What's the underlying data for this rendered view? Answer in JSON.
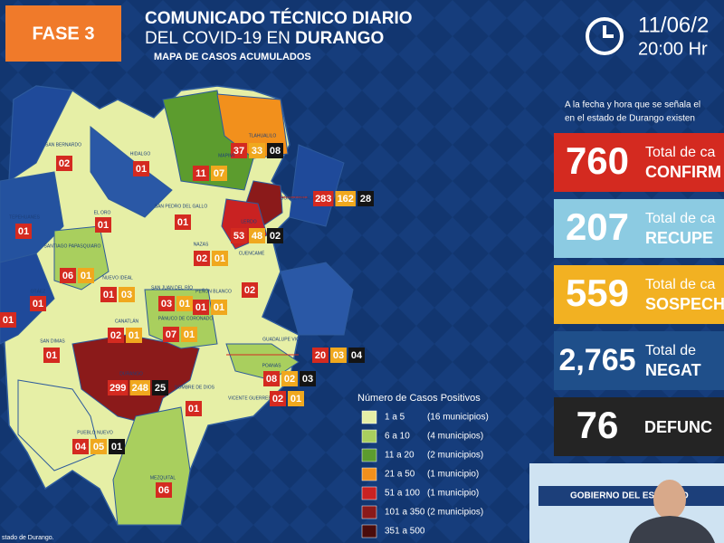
{
  "header": {
    "phase": "FASE 3",
    "title": "COMUNICADO TÉCNICO DIARIO",
    "subtitle_prefix": "DEL COVID-19 EN",
    "subtitle_state": "DURANGO",
    "map_title": "MAPA DE CASOS ACUMULADOS",
    "date": "11/06/2",
    "time": "20:00 Hr"
  },
  "intro": [
    "A la fecha y hora que se señala el",
    "en el estado de Durango existen"
  ],
  "stats": [
    {
      "number": "760",
      "line1": "Total de ca",
      "line2": "CONFIRM"
    },
    {
      "number": "207",
      "line1": "Total de ca",
      "line2": "RECUPE"
    },
    {
      "number": "559",
      "line1": "Total de ca",
      "line2": "SOSPECH"
    },
    {
      "number": "2,765",
      "line1": "Total de",
      "line2": "NEGAT"
    },
    {
      "number": "76",
      "line1": "DEFUNC"
    }
  ],
  "legend": {
    "title": "Número de Casos Positivos",
    "items": [
      {
        "range": "1 a 5",
        "count": "(16 municipios)",
        "color": "#e6efa6"
      },
      {
        "range": "6 a 10",
        "count": "(4 municipios)",
        "color": "#a9cf5e"
      },
      {
        "range": "11 a 20",
        "count": "(2 municipios)",
        "color": "#5c9c2e"
      },
      {
        "range": "21 a 50",
        "count": "(1 municipio)",
        "color": "#f2901c"
      },
      {
        "range": "51 a 100",
        "count": "(1 municipio)",
        "color": "#c92222"
      },
      {
        "range": "101 a 350",
        "count": "(2 municipios)",
        "color": "#8b1a1a"
      },
      {
        "range": "351 a 500",
        "color": "#4a0c0c"
      }
    ]
  },
  "municipalities": [
    {
      "name": "SAN BERNARDO",
      "counts": [
        "02"
      ]
    },
    {
      "name": "HIDALGO",
      "counts": [
        "01"
      ]
    },
    {
      "name": "TLAHUALILO",
      "counts": [
        "37",
        "33",
        "08"
      ]
    },
    {
      "name": "MAPIMÍ",
      "counts": [
        "11",
        "07"
      ]
    },
    {
      "name": "GÓMEZ PALACIO",
      "counts": [
        "283",
        "162",
        "28"
      ]
    },
    {
      "name": "LERDO",
      "counts": [
        "53",
        "48",
        "02"
      ]
    },
    {
      "name": "SAN PEDRO DEL GALLO",
      "counts": [
        "01"
      ]
    },
    {
      "name": "TEPEHUANES",
      "counts": [
        "01"
      ]
    },
    {
      "name": "EL ORO",
      "counts": [
        "01"
      ]
    },
    {
      "name": "SANTIAGO PAPASQUIARO",
      "counts": [
        "06",
        "01"
      ]
    },
    {
      "name": "NAZAS",
      "counts": [
        "02",
        "01"
      ]
    },
    {
      "name": "CUENCAMÉ",
      "counts": [
        "02"
      ]
    },
    {
      "name": "OTÁEZ",
      "counts": [
        "01"
      ]
    },
    {
      "name": "NUEVO IDEAL",
      "counts": [
        "01",
        "03"
      ]
    },
    {
      "name": "SAN JUAN DEL RÍO",
      "counts": [
        "03",
        "01"
      ]
    },
    {
      "name": "PEÑÓN BLANCO",
      "counts": [
        "01",
        "01"
      ]
    },
    {
      "name": "CANATLÁN",
      "counts": [
        "02",
        "01"
      ]
    },
    {
      "name": "PÁNUCO DE CORONADO",
      "counts": [
        "07",
        "01"
      ]
    },
    {
      "name": "GUADALUPE VICTORIA",
      "counts": [
        "20",
        "03",
        "04"
      ]
    },
    {
      "name": "SAN DIMAS",
      "counts": [
        "01"
      ]
    },
    {
      "name": "DURANGO",
      "counts": [
        "299",
        "248",
        "25"
      ]
    },
    {
      "name": "POANAS",
      "counts": [
        "08",
        "02",
        "03"
      ]
    },
    {
      "name": "NOMBRE DE DIOS",
      "counts": [
        "01"
      ]
    },
    {
      "name": "VICENTE GUERRERO",
      "counts": [
        "02",
        "01"
      ]
    },
    {
      "name": "PUEBLO NUEVO",
      "counts": [
        "04",
        "05",
        "01"
      ]
    },
    {
      "name": "MEZQUITAL",
      "counts": [
        "06"
      ]
    },
    {
      "counts": [
        "01"
      ]
    }
  ],
  "footer_fragment": "stado de Durango.",
  "video_banner": "GOBIERNO DEL ESTADO D"
}
